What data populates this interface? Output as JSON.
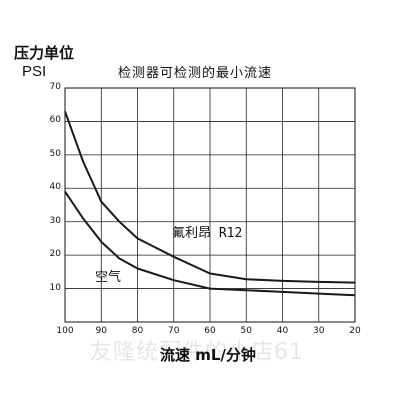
{
  "chart_data": {
    "type": "line",
    "title": "检测器可检测的最小流速",
    "ylabel": "压力单位",
    "yunit": "PSI",
    "xlabel": "流速 mL/分钟",
    "x": [
      100,
      90,
      80,
      70,
      60,
      50,
      40,
      30,
      20
    ],
    "x_ticks": [
      "100",
      "90",
      "80",
      "70",
      "60",
      "50",
      "40",
      "30",
      "20"
    ],
    "y_ticks": [
      "70",
      "60",
      "50",
      "40",
      "30",
      "20",
      "10"
    ],
    "xlim": [
      100,
      20
    ],
    "ylim": [
      0,
      70
    ],
    "grid": true,
    "series": [
      {
        "name": "氟利昂 R12",
        "color": "#1a1a1a",
        "points": [
          [
            100,
            63
          ],
          [
            95,
            48
          ],
          [
            90,
            36
          ],
          [
            85,
            30
          ],
          [
            80,
            25
          ],
          [
            70,
            19.5
          ],
          [
            60,
            14.5
          ],
          [
            50,
            12.8
          ],
          [
            40,
            12.3
          ],
          [
            30,
            12
          ],
          [
            20,
            11.8
          ]
        ]
      },
      {
        "name": "空气",
        "color": "#1a1a1a",
        "points": [
          [
            100,
            39
          ],
          [
            95,
            31
          ],
          [
            90,
            24
          ],
          [
            85,
            19
          ],
          [
            80,
            16
          ],
          [
            70,
            12.5
          ],
          [
            60,
            10
          ],
          [
            50,
            9.5
          ],
          [
            40,
            9
          ],
          [
            30,
            8.5
          ],
          [
            20,
            8
          ]
        ]
      }
    ]
  },
  "watermark": "友隆统配件的小店61"
}
